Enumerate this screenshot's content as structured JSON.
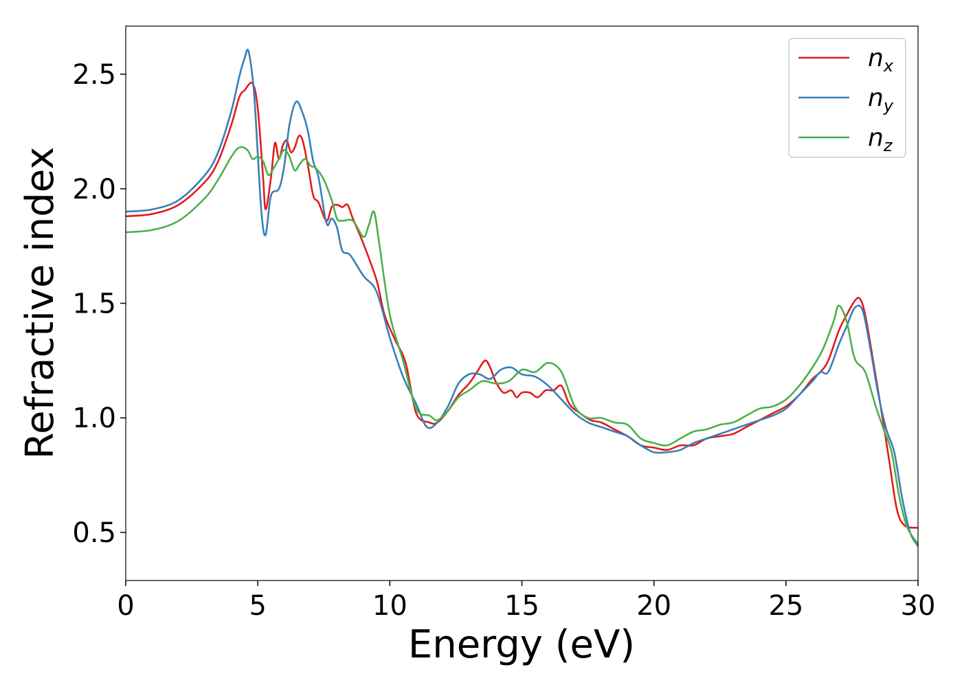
{
  "chart_data": {
    "type": "line",
    "title": "",
    "xlabel": "Energy (eV)",
    "ylabel": "Refractive index",
    "xlim": [
      0,
      30
    ],
    "ylim": [
      0.29,
      2.71
    ],
    "xticks": [
      0,
      5,
      10,
      15,
      20,
      25,
      30
    ],
    "xtick_labels": [
      "0",
      "5",
      "10",
      "15",
      "20",
      "25",
      "30"
    ],
    "yticks": [
      0.5,
      1.0,
      1.5,
      2.0,
      2.5
    ],
    "ytick_labels": [
      "0.5",
      "1.0",
      "1.5",
      "2.0",
      "2.5"
    ],
    "grid": false,
    "legend_position": "top-right",
    "series": [
      {
        "name": "n",
        "subscript": "x",
        "color": "#e41a1c",
        "x": [
          0,
          1,
          2,
          3,
          3.5,
          4,
          4.3,
          4.5,
          4.8,
          5.0,
          5.2,
          5.3,
          5.5,
          5.65,
          5.8,
          5.95,
          6.1,
          6.25,
          6.4,
          6.55,
          6.7,
          6.9,
          7.1,
          7.3,
          7.6,
          7.8,
          8.0,
          8.2,
          8.4,
          8.6,
          9.0,
          9.5,
          9.8,
          10.2,
          10.6,
          11.0,
          11.5,
          11.8,
          12.2,
          12.6,
          13.0,
          13.3,
          13.6,
          13.8,
          14.0,
          14.3,
          14.6,
          14.8,
          15.0,
          15.3,
          15.6,
          15.9,
          16.2,
          16.5,
          16.8,
          17.2,
          17.6,
          18.0,
          18.5,
          19.0,
          19.5,
          20.0,
          20.5,
          21.0,
          21.5,
          22.0,
          22.5,
          23.0,
          23.5,
          24.0,
          24.5,
          25.0,
          25.5,
          26.0,
          26.3,
          26.6,
          27.0,
          27.3,
          27.6,
          27.8,
          28.0,
          28.3,
          28.6,
          28.9,
          29.2,
          29.5,
          30.0
        ],
        "y": [
          1.88,
          1.89,
          1.93,
          2.03,
          2.12,
          2.28,
          2.4,
          2.43,
          2.46,
          2.35,
          2.05,
          1.91,
          2.05,
          2.2,
          2.13,
          2.19,
          2.21,
          2.16,
          2.18,
          2.23,
          2.21,
          2.1,
          1.97,
          1.94,
          1.86,
          1.92,
          1.93,
          1.92,
          1.93,
          1.87,
          1.76,
          1.6,
          1.45,
          1.34,
          1.24,
          1.02,
          0.98,
          0.98,
          1.03,
          1.1,
          1.15,
          1.2,
          1.25,
          1.22,
          1.16,
          1.11,
          1.12,
          1.09,
          1.11,
          1.11,
          1.09,
          1.12,
          1.12,
          1.14,
          1.06,
          1.02,
          0.99,
          0.98,
          0.95,
          0.92,
          0.88,
          0.87,
          0.86,
          0.88,
          0.88,
          0.91,
          0.92,
          0.93,
          0.96,
          0.99,
          1.02,
          1.05,
          1.1,
          1.17,
          1.2,
          1.25,
          1.38,
          1.45,
          1.51,
          1.52,
          1.45,
          1.25,
          1.04,
          0.82,
          0.6,
          0.53,
          0.52
        ]
      },
      {
        "name": "n",
        "subscript": "y",
        "color": "#377eb8",
        "x": [
          0,
          1,
          2,
          3,
          3.5,
          4,
          4.3,
          4.5,
          4.65,
          4.85,
          5.0,
          5.15,
          5.3,
          5.5,
          5.8,
          6.0,
          6.2,
          6.45,
          6.7,
          6.9,
          7.1,
          7.3,
          7.6,
          7.8,
          8.0,
          8.2,
          8.5,
          9.0,
          9.5,
          10.0,
          10.5,
          11.0,
          11.4,
          11.8,
          12.2,
          12.6,
          13.0,
          13.4,
          13.8,
          14.2,
          14.6,
          15.0,
          15.5,
          16.0,
          16.5,
          17.0,
          17.5,
          18.0,
          18.5,
          19.0,
          19.5,
          20.0,
          20.5,
          21.0,
          21.5,
          22.0,
          22.5,
          23.0,
          23.5,
          24.0,
          24.5,
          25.0,
          25.5,
          26.0,
          26.3,
          26.6,
          27.0,
          27.3,
          27.6,
          27.9,
          28.2,
          28.5,
          28.8,
          29.1,
          29.4,
          29.7,
          30.0
        ],
        "y": [
          1.9,
          1.91,
          1.95,
          2.06,
          2.16,
          2.34,
          2.49,
          2.57,
          2.6,
          2.43,
          2.15,
          1.88,
          1.8,
          1.97,
          2.0,
          2.1,
          2.28,
          2.38,
          2.33,
          2.25,
          2.12,
          2.05,
          1.85,
          1.87,
          1.83,
          1.73,
          1.71,
          1.62,
          1.55,
          1.35,
          1.18,
          1.06,
          0.96,
          0.98,
          1.05,
          1.15,
          1.19,
          1.19,
          1.17,
          1.21,
          1.22,
          1.19,
          1.18,
          1.14,
          1.08,
          1.02,
          0.98,
          0.96,
          0.94,
          0.92,
          0.88,
          0.85,
          0.85,
          0.86,
          0.89,
          0.91,
          0.93,
          0.95,
          0.97,
          0.99,
          1.01,
          1.04,
          1.1,
          1.16,
          1.2,
          1.2,
          1.32,
          1.4,
          1.48,
          1.47,
          1.3,
          1.1,
          0.95,
          0.85,
          0.65,
          0.5,
          0.44
        ]
      },
      {
        "name": "n",
        "subscript": "z",
        "color": "#4daf4a",
        "x": [
          0,
          1,
          2,
          3,
          3.5,
          4,
          4.3,
          4.6,
          4.8,
          5.0,
          5.2,
          5.4,
          5.6,
          5.8,
          6.0,
          6.2,
          6.4,
          6.6,
          6.8,
          7.0,
          7.2,
          7.5,
          7.8,
          8.0,
          8.2,
          8.6,
          9.0,
          9.2,
          9.4,
          9.6,
          10.0,
          10.5,
          11.0,
          11.5,
          11.8,
          12.2,
          12.6,
          13.0,
          13.5,
          14.0,
          14.5,
          15.0,
          15.5,
          16.0,
          16.5,
          17.0,
          17.5,
          18.0,
          18.5,
          19.0,
          19.5,
          20.0,
          20.5,
          21.0,
          21.5,
          22.0,
          22.5,
          23.0,
          23.5,
          24.0,
          24.5,
          25.0,
          25.5,
          26.0,
          26.4,
          26.8,
          27.0,
          27.3,
          27.6,
          28.0,
          28.4,
          28.7,
          29.0,
          29.3,
          29.6,
          30.0
        ],
        "y": [
          1.81,
          1.82,
          1.86,
          1.96,
          2.04,
          2.14,
          2.18,
          2.17,
          2.13,
          2.14,
          2.12,
          2.06,
          2.09,
          2.13,
          2.17,
          2.14,
          2.08,
          2.11,
          2.13,
          2.1,
          2.09,
          2.04,
          1.95,
          1.87,
          1.86,
          1.86,
          1.79,
          1.84,
          1.9,
          1.76,
          1.45,
          1.25,
          1.04,
          1.01,
          0.99,
          1.03,
          1.09,
          1.12,
          1.16,
          1.15,
          1.16,
          1.21,
          1.2,
          1.24,
          1.2,
          1.05,
          1.0,
          1.0,
          0.98,
          0.97,
          0.91,
          0.89,
          0.88,
          0.91,
          0.94,
          0.95,
          0.97,
          0.98,
          1.01,
          1.04,
          1.05,
          1.08,
          1.14,
          1.22,
          1.3,
          1.42,
          1.49,
          1.42,
          1.26,
          1.2,
          1.05,
          0.95,
          0.85,
          0.65,
          0.52,
          0.45
        ]
      }
    ]
  }
}
